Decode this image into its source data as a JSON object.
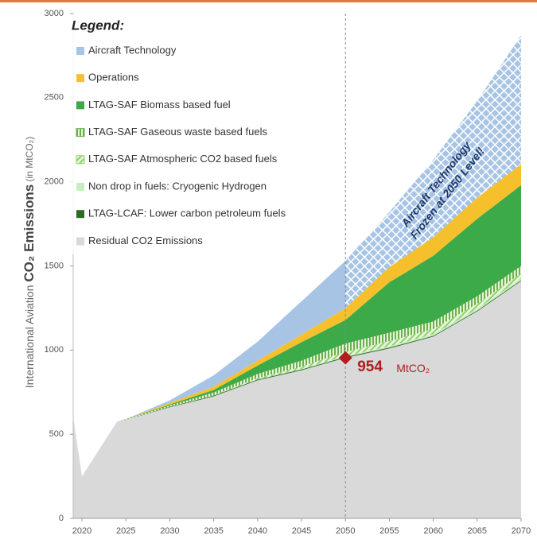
{
  "chart_data": {
    "type": "stacked_area",
    "legend_title": "Legend:",
    "ylabel_parts": [
      "International Aviation ",
      "CO₂ Emissions",
      " (in MtCO₂)"
    ],
    "x": [
      2019,
      2020,
      2024,
      2025,
      2030,
      2035,
      2040,
      2045,
      2050,
      2055,
      2060,
      2065,
      2070
    ],
    "xlim": [
      2019,
      2070
    ],
    "xticks": [
      2020,
      2025,
      2030,
      2035,
      2040,
      2045,
      2050,
      2055,
      2060,
      2065,
      2070
    ],
    "ylim": [
      0,
      3000
    ],
    "yticks": [
      0,
      500,
      1000,
      1500,
      2000,
      2500,
      3000
    ],
    "series": [
      {
        "name": "Residual CO2 Emissions",
        "color": "#d9d9d9",
        "pattern": "solid",
        "values": [
          600,
          250,
          575,
          585,
          660,
          725,
          820,
          880,
          954,
          1010,
          1080,
          1230,
          1410
        ]
      },
      {
        "name": "LTAG-LCAF: Lower carbon petroleum fuels",
        "color": "#2e6b2a",
        "pattern": "solid",
        "values": [
          0,
          0,
          0,
          0,
          3,
          5,
          5,
          5,
          5,
          5,
          5,
          5,
          5
        ]
      },
      {
        "name": "Non drop in fuels: Cryogenic Hydrogen",
        "color": "#c6efc0",
        "pattern": "solid",
        "values": [
          0,
          0,
          0,
          0,
          0,
          0,
          0,
          2,
          5,
          8,
          10,
          10,
          10
        ]
      },
      {
        "name": "LTAG-SAF Atmospheric CO2 based fuels",
        "color": "#8fd06a",
        "pattern": "diagonal",
        "values": [
          0,
          0,
          0,
          0,
          0,
          3,
          8,
          15,
          25,
          30,
          30,
          30,
          30
        ]
      },
      {
        "name": "LTAG-SAF Gaseous waste based fuels",
        "color": "#6ab04c",
        "pattern": "vertical",
        "values": [
          0,
          0,
          0,
          5,
          8,
          15,
          25,
          35,
          50,
          50,
          45,
          45,
          45
        ]
      },
      {
        "name": "LTAG-SAF Biomass based fuel",
        "color": "#3daa4a",
        "pattern": "solid",
        "values": [
          0,
          0,
          0,
          0,
          5,
          15,
          50,
          110,
          140,
          300,
          390,
          460,
          480
        ]
      },
      {
        "name": "Operations",
        "color": "#f6c02c",
        "pattern": "solid",
        "values": [
          0,
          0,
          0,
          0,
          10,
          20,
          30,
          45,
          70,
          90,
          110,
          125,
          125
        ]
      },
      {
        "name": "Aircraft Technology",
        "color": "#a7c4e5",
        "pattern": "solid",
        "values": [
          0,
          0,
          0,
          0,
          15,
          67,
          112,
          198,
          281,
          327,
          460,
          575,
          765
        ]
      }
    ],
    "frozen_from": 2050,
    "frozen_text": [
      "Aircraft Technology",
      "Frozen at 2050 Level!"
    ],
    "marker": {
      "x": 2050,
      "y": 954,
      "unit": "MtCO₂"
    }
  }
}
